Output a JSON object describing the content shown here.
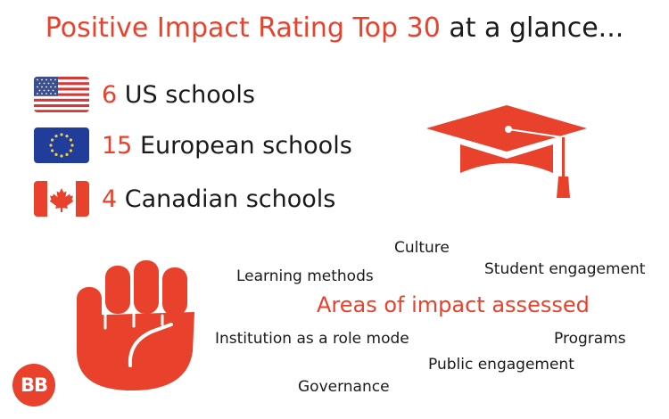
{
  "title": {
    "accent": "Positive Impact Rating Top 30",
    "rest": "at a glance..."
  },
  "schools": [
    {
      "count": "6",
      "label": "US schools",
      "flag": "us-flag-icon"
    },
    {
      "count": "15",
      "label": "European schools",
      "flag": "eu-flag-icon"
    },
    {
      "count": "4",
      "label": "Canadian schools",
      "flag": "canada-flag-icon"
    }
  ],
  "areas": {
    "heading": "Areas of impact assessed",
    "items": [
      "Culture",
      "Learning methods",
      "Student engagement",
      "Institution as a role mode",
      "Programs",
      "Public engagement",
      "Governance"
    ]
  },
  "logo": {
    "text": "BB"
  },
  "colors": {
    "accent": "#e8412c",
    "text": "#1a1a1a"
  },
  "icons": [
    "graduation-cap-icon",
    "raised-fist-icon"
  ]
}
